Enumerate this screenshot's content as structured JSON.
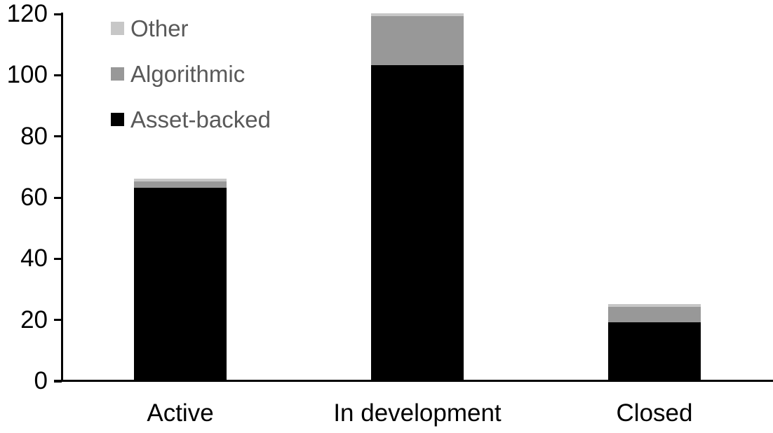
{
  "chart_data": {
    "type": "bar",
    "stacked": true,
    "title": "",
    "categories": [
      "Active",
      "In development",
      "Closed"
    ],
    "series": [
      {
        "name": "Asset-backed",
        "color": "#000000",
        "values": [
          63,
          103,
          19
        ]
      },
      {
        "name": "Algorithmic",
        "color": "#989898",
        "values": [
          2,
          16,
          5
        ]
      },
      {
        "name": "Other",
        "color": "#c7c7c7",
        "values": [
          1,
          1,
          1
        ]
      }
    ],
    "y_axis": {
      "min": 0,
      "max": 120,
      "tick_step": 20,
      "ticks": [
        0,
        20,
        40,
        60,
        80,
        100,
        120
      ]
    },
    "x_axis": {
      "labels": [
        "Active",
        "In development",
        "Closed"
      ]
    },
    "legend": {
      "position": "top-left",
      "order": [
        "Other",
        "Algorithmic",
        "Asset-backed"
      ],
      "text_color": "#595959"
    },
    "grid": false,
    "axis_color": "#000000",
    "background": "#ffffff"
  }
}
